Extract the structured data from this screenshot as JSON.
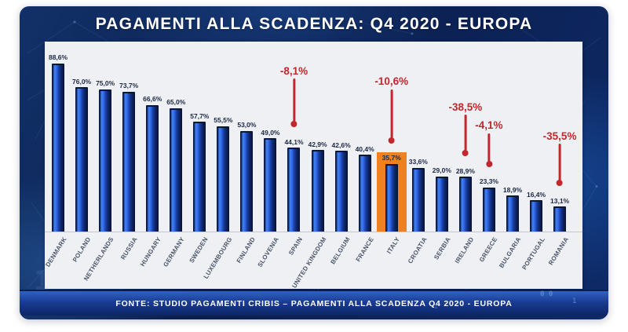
{
  "header": {
    "title": "PAGAMENTI ALLA SCADENZA: Q4 2020 - EUROPA"
  },
  "footer": {
    "text": "FONTE: STUDIO PAGAMENTI CRIBIS – PAGAMENTI ALLA SCADENZA Q4 2020 - EUROPA"
  },
  "colors": {
    "card_blue": "#0d2a67",
    "bar_blue": "#2458d0",
    "highlight_orange": "#ef8120",
    "annotation_red": "#c1272d",
    "panel_bg": "#eef0f4"
  },
  "background_digits": [
    "0 0",
    "1",
    "1",
    "1"
  ],
  "chart_data": {
    "type": "bar",
    "title": "PAGAMENTI ALLA SCADENZA: Q4 2020 - EUROPA",
    "source": "FONTE: STUDIO PAGAMENTI CRIBIS – PAGAMENTI ALLA SCADENZA Q4 2020 - EUROPA",
    "unit": "%",
    "ylim": [
      0,
      100
    ],
    "grid": false,
    "legend": false,
    "highlighted_category": "ITALY",
    "categories": [
      "DENMARK",
      "POLAND",
      "NETHERLANDS",
      "RUSSIA",
      "HUNGARY",
      "GERMANY",
      "SWEDEN",
      "LUXEMBOURG",
      "FINLAND",
      "SLOVENIA",
      "SPAIN",
      "UNITED KINGDOM",
      "BELGIUM",
      "FRANCE",
      "ITALY",
      "CROATIA",
      "SERBIA",
      "IRELAND",
      "GREECE",
      "BULGARIA",
      "PORTUGAL",
      "ROMANIA"
    ],
    "values": [
      88.6,
      76.0,
      75.0,
      73.7,
      66.6,
      65.0,
      57.7,
      55.5,
      53.0,
      49.0,
      44.1,
      42.9,
      42.6,
      40.4,
      35.7,
      33.6,
      29.0,
      28.9,
      23.3,
      18.9,
      16.4,
      13.1
    ],
    "value_labels": [
      "88,6%",
      "76,0%",
      "75,0%",
      "73,7%",
      "66,6%",
      "65,0%",
      "57,7%",
      "55,5%",
      "53,0%",
      "49,0%",
      "44,1%",
      "42,9%",
      "42,6%",
      "40,4%",
      "35,7%",
      "33,6%",
      "29,0%",
      "28,9%",
      "23,3%",
      "18,9%",
      "16,4%",
      "13,1%"
    ],
    "annotations": [
      {
        "category": "SPAIN",
        "label": "-8,1%"
      },
      {
        "category": "ITALY",
        "label": "-10,6%"
      },
      {
        "category": "IRELAND",
        "label": "-38,5%"
      },
      {
        "category": "GREECE",
        "label": "-4,1%"
      },
      {
        "category": "ROMANIA",
        "label": "-35,5%"
      }
    ]
  }
}
